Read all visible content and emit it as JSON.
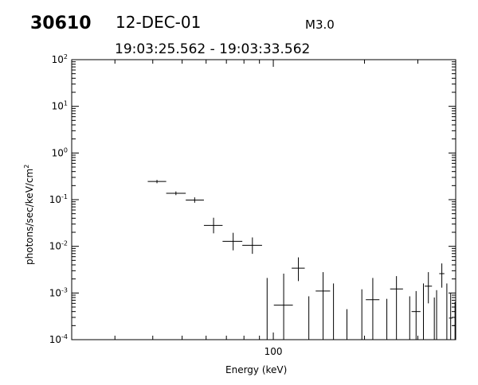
{
  "header": {
    "event_id": "30610",
    "date": "12-DEC-01",
    "flare_class": "M3.0",
    "time_range": "19:03:25.562 - 19:03:33.562"
  },
  "chart_data": {
    "type": "scatter",
    "title": "",
    "xlabel": "Energy (keV)",
    "ylabel_main": "photons/sec/keV/cm",
    "ylabel_sup": "2",
    "xscale": "log",
    "yscale": "log",
    "xlim": [
      21.6,
      400
    ],
    "ylim": [
      0.0001,
      100
    ],
    "grid": false,
    "legend": "none",
    "x_tick_label": "100",
    "y_tick_labels": [
      {
        "value": 0.0001,
        "base": "10",
        "exp": "-4"
      },
      {
        "value": 0.001,
        "base": "10",
        "exp": "-3"
      },
      {
        "value": 0.01,
        "base": "10",
        "exp": "-2"
      },
      {
        "value": 0.1,
        "base": "10",
        "exp": "-1"
      },
      {
        "value": 1,
        "base": "10",
        "exp": "0"
      },
      {
        "value": 10,
        "base": "10",
        "exp": "1"
      },
      {
        "value": 100,
        "base": "10",
        "exp": "2"
      }
    ],
    "series": [
      {
        "points": [
          {
            "x": 41.3,
            "xlo": 38.5,
            "xhi": 44.3,
            "y": 0.245,
            "ylo": 0.225,
            "yhi": 0.265
          },
          {
            "x": 47.7,
            "xlo": 44.3,
            "xhi": 51.4,
            "y": 0.137,
            "ylo": 0.125,
            "yhi": 0.15
          },
          {
            "x": 55.0,
            "xlo": 51.4,
            "xhi": 59.0,
            "y": 0.098,
            "ylo": 0.086,
            "yhi": 0.112
          },
          {
            "x": 63.5,
            "xlo": 59.0,
            "xhi": 68.0,
            "y": 0.028,
            "ylo": 0.019,
            "yhi": 0.041
          },
          {
            "x": 73.7,
            "xlo": 68.0,
            "xhi": 79.0,
            "y": 0.0128,
            "ylo": 0.0082,
            "yhi": 0.0195
          },
          {
            "x": 85.3,
            "xlo": 79.0,
            "xhi": 91.8,
            "y": 0.0105,
            "ylo": 0.0069,
            "yhi": 0.0155
          },
          {
            "x": 95.4,
            "xlo": 95.4,
            "xhi": 95.4,
            "y": 0.0001,
            "ylo": 0.0001,
            "yhi": 0.0021
          },
          {
            "x": 108.2,
            "xlo": 100.4,
            "xhi": 116.0,
            "y": 0.00055,
            "ylo": 0.0001,
            "yhi": 0.0026
          },
          {
            "x": 121.0,
            "xlo": 115.0,
            "xhi": 127.0,
            "y": 0.0034,
            "ylo": 0.0018,
            "yhi": 0.0058
          },
          {
            "x": 131.0,
            "xlo": 131.0,
            "xhi": 131.0,
            "y": 0.0001,
            "ylo": 0.0001,
            "yhi": 0.00085
          },
          {
            "x": 146.0,
            "xlo": 138.0,
            "xhi": 154.0,
            "y": 0.0011,
            "ylo": 0.0001,
            "yhi": 0.0028
          },
          {
            "x": 158.0,
            "xlo": 158.0,
            "xhi": 158.0,
            "y": 0.0001,
            "ylo": 0.0001,
            "yhi": 0.0016
          },
          {
            "x": 175.0,
            "xlo": 175.0,
            "xhi": 175.0,
            "y": 0.0001,
            "ylo": 0.0001,
            "yhi": 0.00045
          },
          {
            "x": 196.0,
            "xlo": 196.0,
            "xhi": 196.0,
            "y": 0.0001,
            "ylo": 0.0001,
            "yhi": 0.0012
          },
          {
            "x": 213.0,
            "xlo": 202.0,
            "xhi": 224.0,
            "y": 0.00072,
            "ylo": 0.0001,
            "yhi": 0.0021
          },
          {
            "x": 237.0,
            "xlo": 237.0,
            "xhi": 237.0,
            "y": 0.0001,
            "ylo": 0.0001,
            "yhi": 0.00075
          },
          {
            "x": 255.0,
            "xlo": 243.0,
            "xhi": 268.0,
            "y": 0.00122,
            "ylo": 0.0001,
            "yhi": 0.0023
          },
          {
            "x": 282.0,
            "xlo": 282.0,
            "xhi": 282.0,
            "y": 0.0001,
            "ylo": 0.0001,
            "yhi": 0.00085
          },
          {
            "x": 296.0,
            "xlo": 286.0,
            "xhi": 306.0,
            "y": 0.0004,
            "ylo": 0.0001,
            "yhi": 0.0011
          },
          {
            "x": 313.0,
            "xlo": 313.0,
            "xhi": 313.0,
            "y": 0.0001,
            "ylo": 0.0001,
            "yhi": 0.0016
          },
          {
            "x": 325.0,
            "xlo": 316.0,
            "xhi": 334.0,
            "y": 0.0014,
            "ylo": 0.0006,
            "yhi": 0.0028
          },
          {
            "x": 340.0,
            "xlo": 340.0,
            "xhi": 340.0,
            "y": 0.0001,
            "ylo": 0.0001,
            "yhi": 0.0008
          },
          {
            "x": 346.0,
            "xlo": 346.0,
            "xhi": 346.0,
            "y": 0.0001,
            "ylo": 0.0001,
            "yhi": 0.00115
          },
          {
            "x": 360.0,
            "xlo": 353.0,
            "xhi": 367.0,
            "y": 0.0026,
            "ylo": 0.0013,
            "yhi": 0.0043
          },
          {
            "x": 374.0,
            "xlo": 374.0,
            "xhi": 374.0,
            "y": 0.0001,
            "ylo": 0.0001,
            "yhi": 0.0016
          },
          {
            "x": 385.0,
            "xlo": 380.0,
            "xhi": 390.0,
            "y": 0.00029,
            "ylo": 0.0001,
            "yhi": 0.00098
          },
          {
            "x": 398.0,
            "xlo": 393.0,
            "xhi": 400.0,
            "y": 0.0002,
            "ylo": 0.0001,
            "yhi": 0.00065
          }
        ]
      }
    ]
  }
}
